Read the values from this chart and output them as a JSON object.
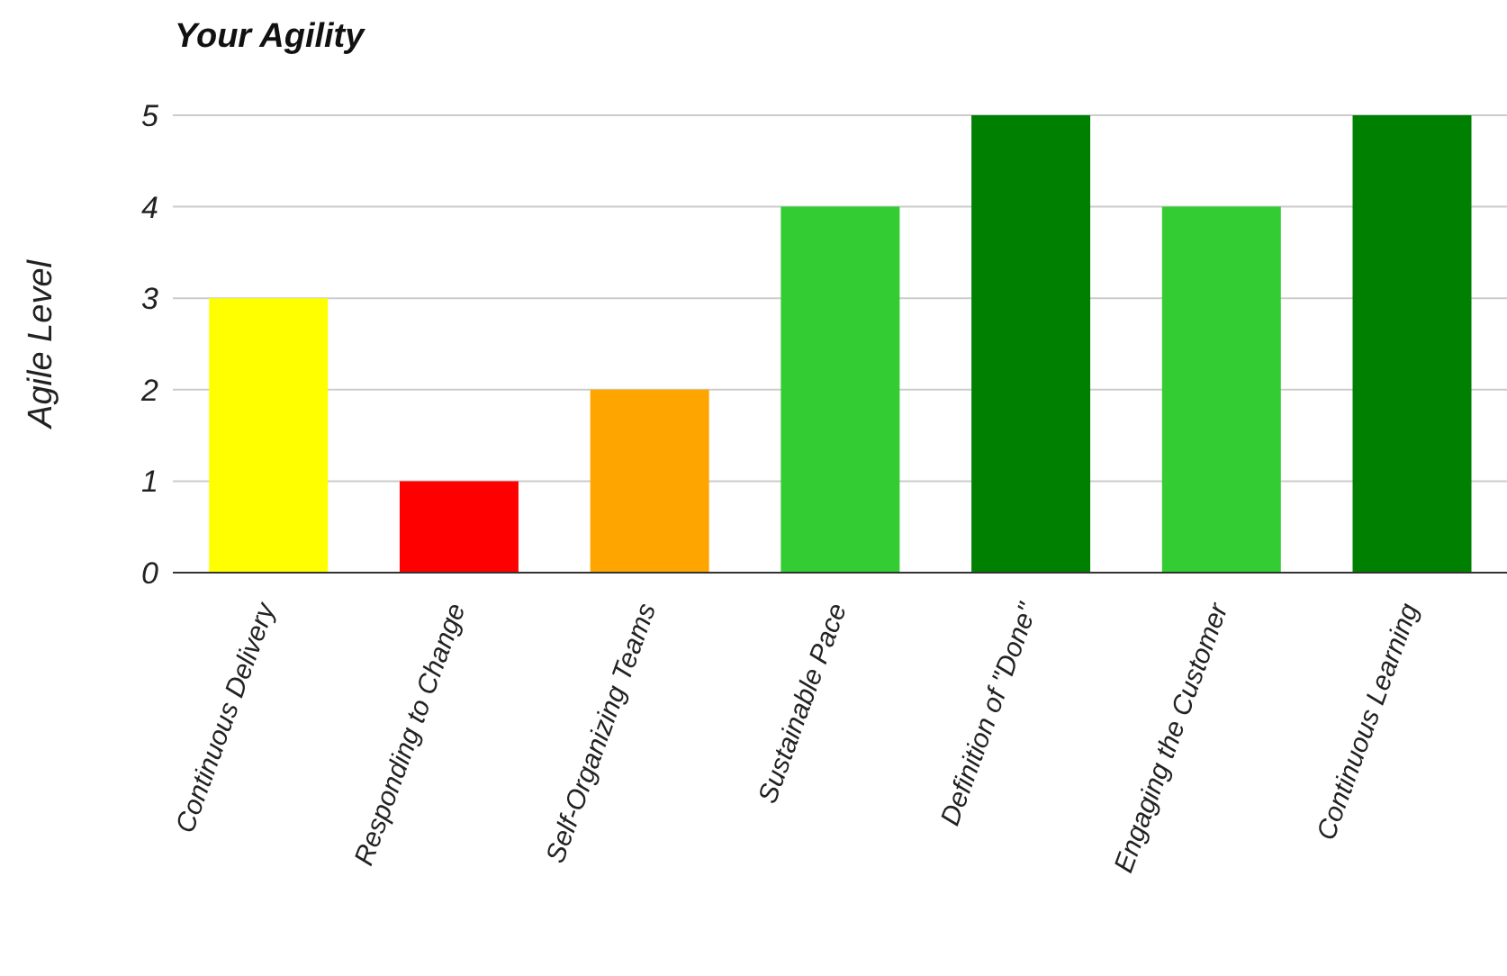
{
  "chart_data": {
    "type": "bar",
    "title": "Your Agility",
    "ylabel": "Agile Level",
    "categories": [
      "Continuous Delivery",
      "Responding to Change",
      "Self-Organizing Teams",
      "Sustainable Pace",
      "Definition of \"Done\"",
      "Engaging the Customer",
      "Continuous Learning"
    ],
    "values": [
      3,
      1,
      2,
      4,
      5,
      4,
      5
    ],
    "colors": [
      "#ffff00",
      "#ff0000",
      "#ffa500",
      "#33cc33",
      "#008000",
      "#33cc33",
      "#008000"
    ],
    "ylim": [
      0,
      5
    ],
    "yticks": [
      0,
      1,
      2,
      3,
      4,
      5
    ],
    "grid": "y",
    "legend": false
  }
}
